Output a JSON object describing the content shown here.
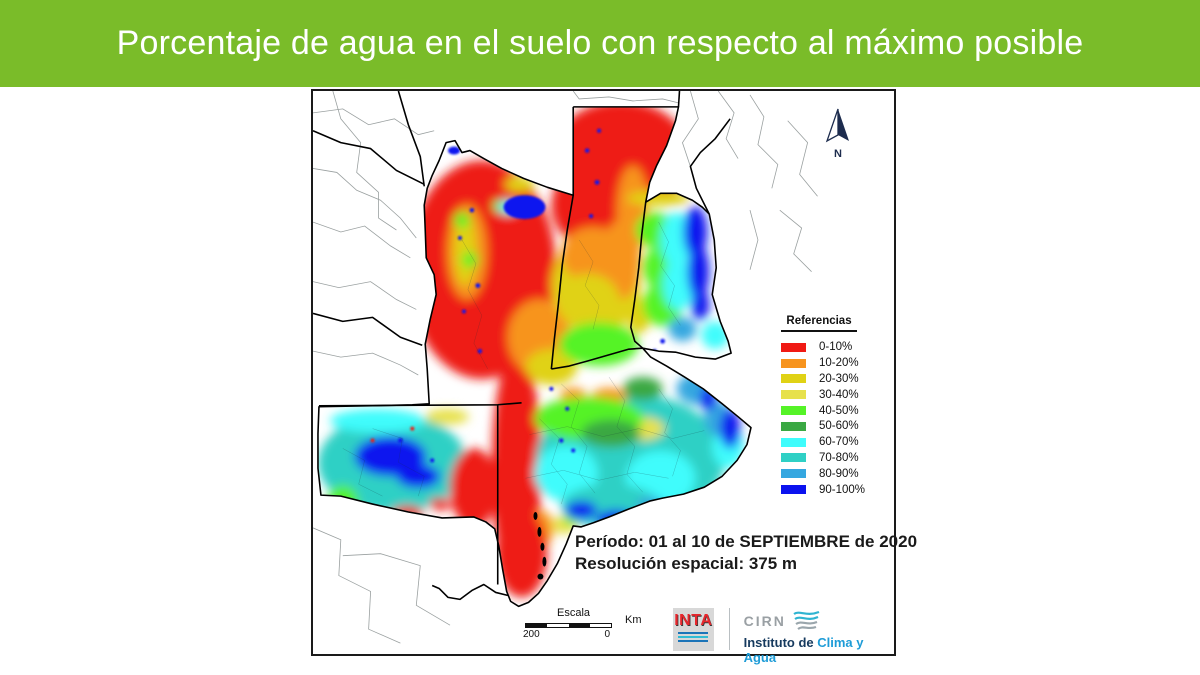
{
  "banner": {
    "title": "Porcentaje de agua en el suelo con respecto al máximo posible",
    "bg_color": "#7abc29",
    "text_color": "#ffffff"
  },
  "map": {
    "north_label": "N",
    "legend": {
      "title": "Referencias",
      "items": [
        {
          "label": "0-10%",
          "color": "#f01a14"
        },
        {
          "label": "10-20%",
          "color": "#f7941e"
        },
        {
          "label": "20-30%",
          "color": "#e0d215"
        },
        {
          "label": "30-40%",
          "color": "#e7e14c"
        },
        {
          "label": "40-50%",
          "color": "#55f327"
        },
        {
          "label": "50-60%",
          "color": "#3aa843"
        },
        {
          "label": "60-70%",
          "color": "#3ffcfc"
        },
        {
          "label": "70-80%",
          "color": "#2fd0c5"
        },
        {
          "label": "80-90%",
          "color": "#35a7e0"
        },
        {
          "label": "90-100%",
          "color": "#0b12ef"
        }
      ]
    },
    "info": {
      "line1": "Período: 01 al 10 de SEPTIEMBRE de 2020",
      "line2": "Resolución espacial: 375 m"
    },
    "scale": {
      "label": "Escala",
      "start": "200",
      "end": "0",
      "unit": "Km"
    },
    "credits": {
      "inta": "INTA",
      "cirn": "CIRN",
      "institute_prefix": "Instituto de ",
      "institute_highlight": "Clima y Agua"
    }
  }
}
